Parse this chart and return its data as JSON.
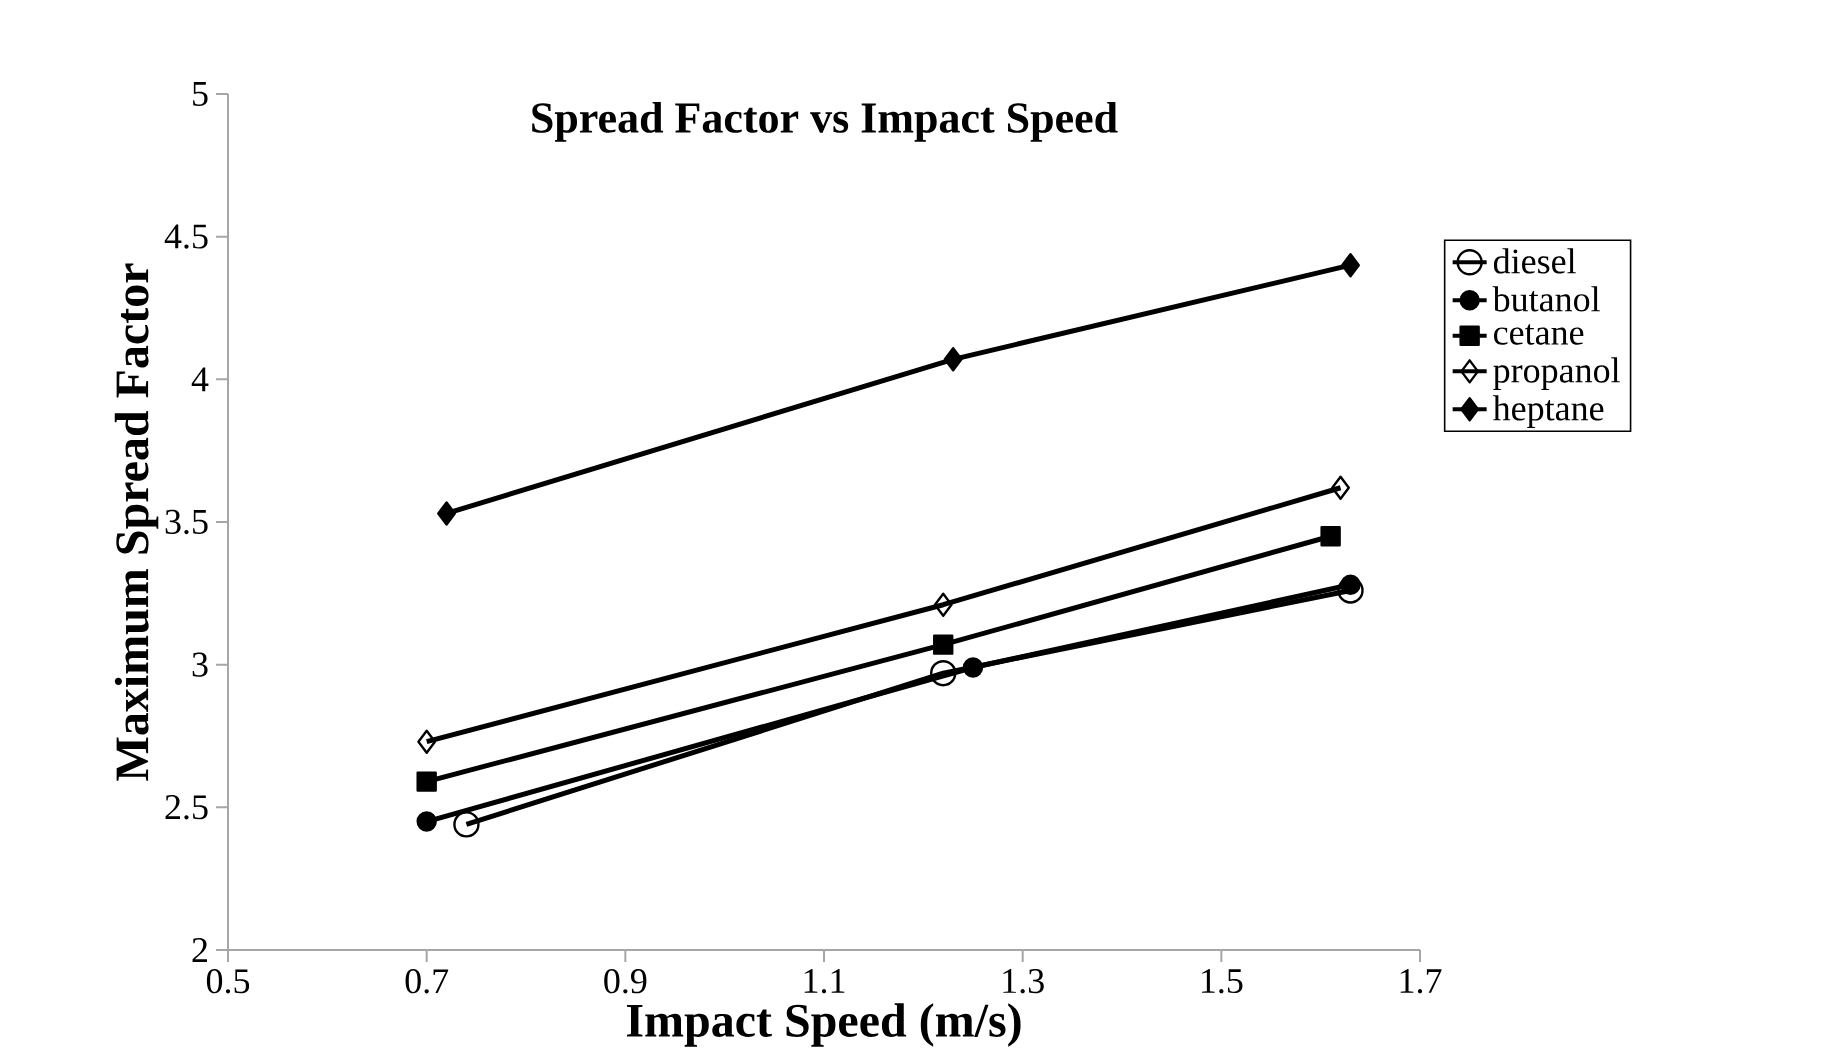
{
  "chart_data": {
    "type": "line",
    "title": "Spread Factor vs Impact Speed",
    "xlabel": "Impact Speed (m/s)",
    "ylabel": "Maximum Spread Factor",
    "xlim": [
      0.5,
      1.7
    ],
    "xticks": [
      0.5,
      0.7,
      0.9,
      1.1,
      1.3,
      1.5,
      1.7
    ],
    "ylim": [
      2,
      5
    ],
    "yticks": [
      2,
      2.5,
      3,
      3.5,
      4,
      4.5,
      5
    ],
    "grid": false,
    "legend": "right",
    "line_style": "solid",
    "series": [
      {
        "name": "diesel",
        "color": "#000000",
        "marker": "circle",
        "x": [
          0.74,
          1.22,
          1.63
        ],
        "values": [
          2.44,
          2.97,
          3.26
        ]
      },
      {
        "name": "butanol",
        "color": "#000000",
        "marker": "circle",
        "x": [
          0.7,
          1.25,
          1.63
        ],
        "values": [
          2.45,
          2.99,
          3.28
        ]
      },
      {
        "name": "cetane",
        "color": "#000000",
        "marker": "square",
        "x": [
          0.7,
          1.22,
          1.61
        ],
        "values": [
          2.59,
          3.07,
          3.45
        ]
      },
      {
        "name": "propanol",
        "color": "#000000",
        "marker": "diamond",
        "x": [
          0.7,
          1.22,
          1.62
        ],
        "values": [
          2.73,
          3.21,
          3.62
        ]
      },
      {
        "name": "heptane",
        "color": "#000000",
        "marker": "diamond",
        "x": [
          0.72,
          1.23,
          1.63
        ],
        "values": [
          3.53,
          4.07,
          4.4
        ]
      }
    ]
  }
}
